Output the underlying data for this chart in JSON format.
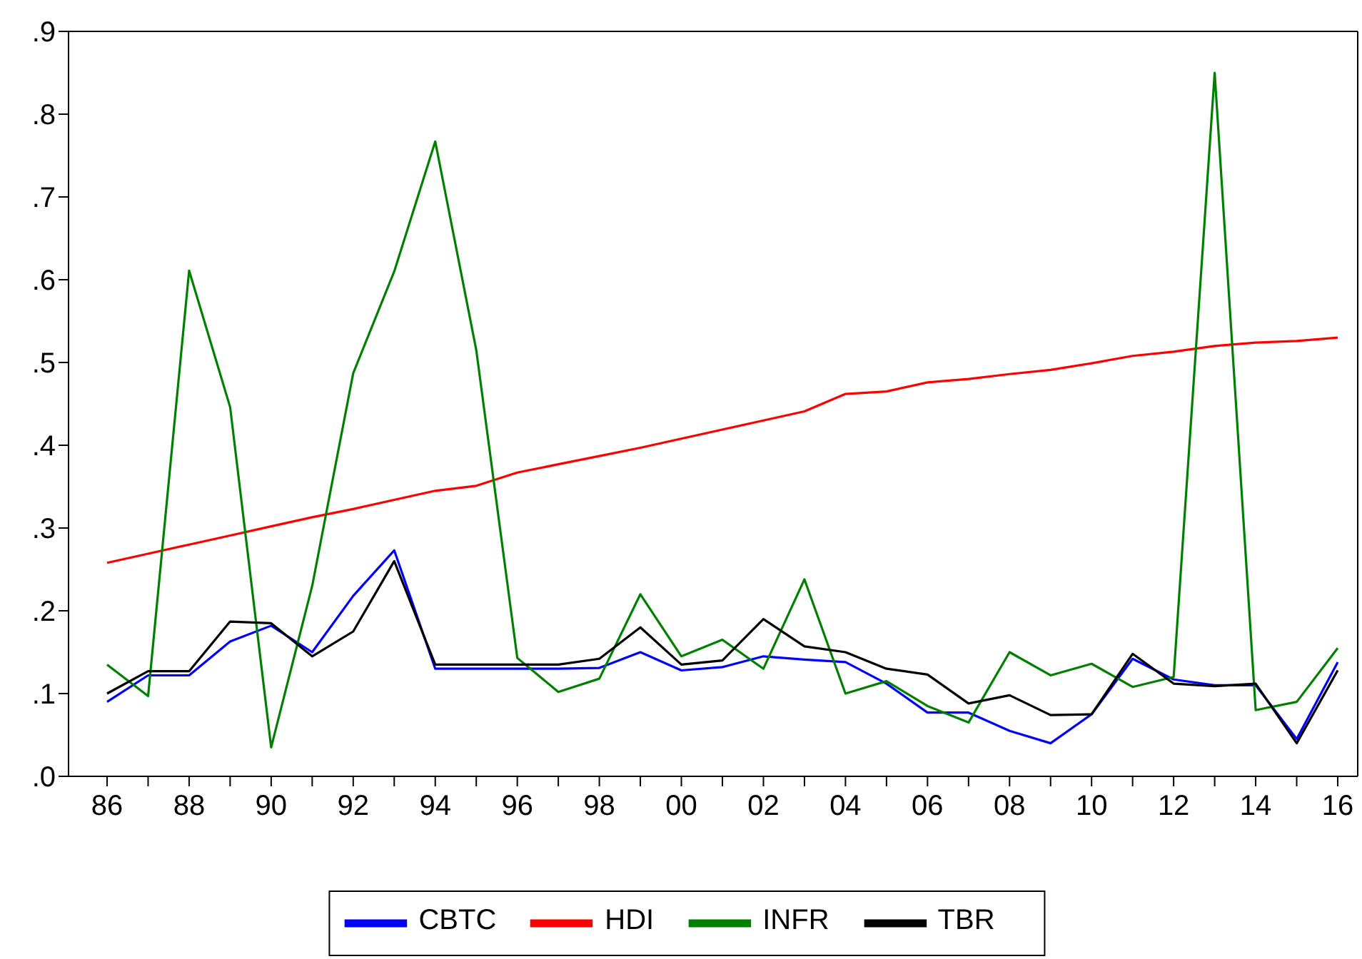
{
  "chart_data": {
    "type": "line",
    "categories": [
      "86",
      null,
      "88",
      null,
      "90",
      null,
      "92",
      null,
      "94",
      null,
      "96",
      null,
      "98",
      null,
      "00",
      null,
      "02",
      null,
      "04",
      null,
      "06",
      null,
      "08",
      null,
      "10",
      null,
      "12",
      null,
      "14",
      null,
      "16"
    ],
    "series": [
      {
        "name": "CBTC",
        "color": "#0000ff",
        "values": [
          0.09,
          0.122,
          0.122,
          0.163,
          0.182,
          0.15,
          0.218,
          0.273,
          0.13,
          0.13,
          0.13,
          0.13,
          0.131,
          0.15,
          0.128,
          0.132,
          0.145,
          0.141,
          0.138,
          0.112,
          0.077,
          0.077,
          0.055,
          0.04,
          0.075,
          0.142,
          0.117,
          0.11,
          0.11,
          0.045,
          0.138
        ]
      },
      {
        "name": "HDI",
        "color": "#ff0000",
        "values": [
          0.258,
          0.269,
          0.28,
          0.291,
          0.302,
          0.313,
          0.323,
          0.334,
          0.345,
          0.351,
          0.367,
          0.377,
          0.387,
          0.397,
          0.408,
          0.419,
          0.43,
          0.441,
          0.462,
          0.465,
          0.476,
          0.48,
          0.486,
          0.491,
          0.499,
          0.508,
          0.513,
          0.52,
          0.524,
          0.526,
          0.53
        ]
      },
      {
        "name": "INFR",
        "color": "#008000",
        "values": [
          0.135,
          0.097,
          0.611,
          0.446,
          0.035,
          0.23,
          0.487,
          0.61,
          0.767,
          0.515,
          0.143,
          0.102,
          0.118,
          0.22,
          0.145,
          0.165,
          0.13,
          0.238,
          0.1,
          0.115,
          0.085,
          0.065,
          0.15,
          0.122,
          0.136,
          0.108,
          0.12,
          0.85,
          0.08,
          0.09,
          0.155
        ]
      },
      {
        "name": "TBR",
        "color": "#000000",
        "values": [
          0.1,
          0.127,
          0.127,
          0.187,
          0.185,
          0.145,
          0.175,
          0.26,
          0.135,
          0.135,
          0.135,
          0.135,
          0.142,
          0.18,
          0.135,
          0.14,
          0.19,
          0.157,
          0.15,
          0.13,
          0.123,
          0.088,
          0.098,
          0.074,
          0.075,
          0.148,
          0.112,
          0.109,
          0.112,
          0.04,
          0.128
        ]
      }
    ],
    "ylim": [
      0,
      0.9
    ],
    "yticks": [
      {
        "value": 0,
        "label": ".0"
      },
      {
        "value": 0.1,
        "label": ".1"
      },
      {
        "value": 0.2,
        "label": ".2"
      },
      {
        "value": 0.3,
        "label": ".3"
      },
      {
        "value": 0.4,
        "label": ".4"
      },
      {
        "value": 0.5,
        "label": ".5"
      },
      {
        "value": 0.6,
        "label": ".6"
      },
      {
        "value": 0.7,
        "label": ".7"
      },
      {
        "value": 0.8,
        "label": ".8"
      },
      {
        "value": 0.9,
        "label": ".9"
      }
    ],
    "grid": false,
    "legend": "bottom",
    "marker": "none",
    "line_style": "solid"
  }
}
